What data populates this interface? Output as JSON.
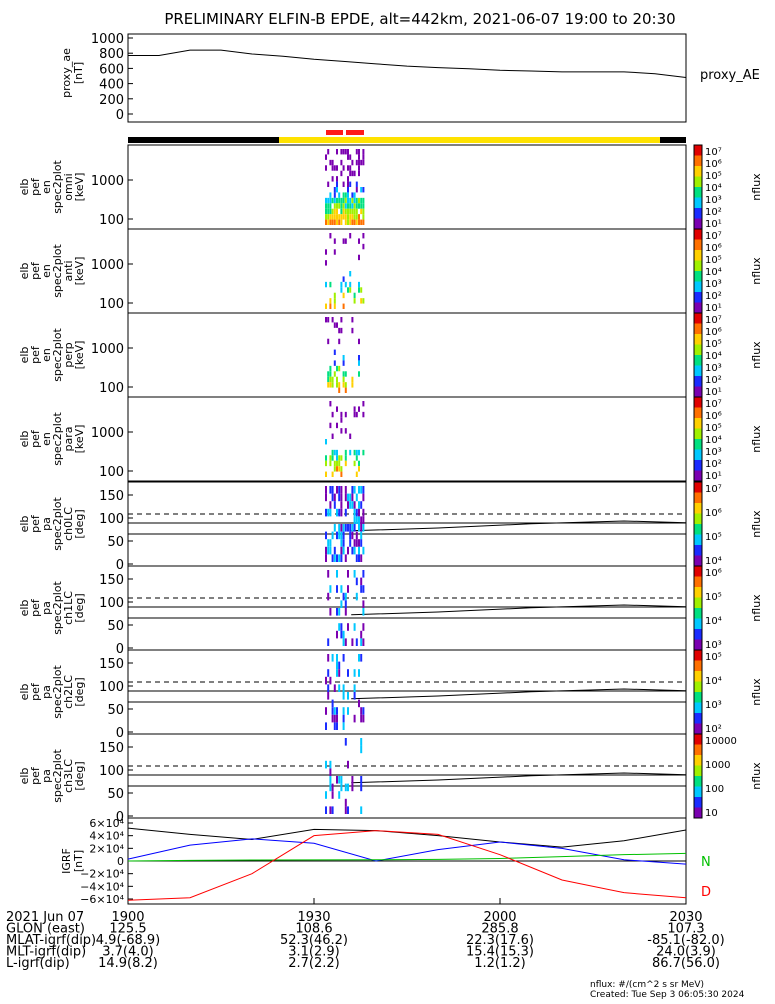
{
  "title": "PRELIMINARY ELFIN-B EPDE, alt=442km, 2021-06-07 19:00 to 20:30",
  "colors": {
    "ae_line": "#000000",
    "bar_black": "#000000",
    "bar_yellow": "#ffe200",
    "bar_red": "#ff1a1a",
    "grf_n": "#00c000",
    "grf_d": "#ff0000",
    "grf_e": "#0000ff",
    "grf_total": "#000000"
  },
  "panels": [
    {
      "ylabel": [
        "proxy_ae",
        "[nT]"
      ],
      "ticks": [
        "1000",
        "800",
        "600",
        "400",
        "200",
        "0"
      ],
      "right_label": "proxy_AE"
    },
    {
      "ylabel": [
        "elb",
        "pef",
        "en",
        "spec2plot",
        "omni",
        "[keV]"
      ],
      "ticks": [
        "1000",
        "100"
      ],
      "cbar_ticks": [
        "10⁷",
        "10⁶",
        "10⁵",
        "10⁴",
        "10³",
        "10²",
        "10¹"
      ],
      "cbar_label": "nflux"
    },
    {
      "ylabel": [
        "elb",
        "pef",
        "en",
        "spec2plot",
        "anti",
        "[keV]"
      ],
      "ticks": [
        "1000",
        "100"
      ],
      "cbar_ticks": [
        "10⁷",
        "10⁶",
        "10⁵",
        "10⁴",
        "10³",
        "10²",
        "10¹"
      ],
      "cbar_label": "nflux"
    },
    {
      "ylabel": [
        "elb",
        "pef",
        "en",
        "spec2plot",
        "perp",
        "[keV]"
      ],
      "ticks": [
        "1000",
        "100"
      ],
      "cbar_ticks": [
        "10⁷",
        "10⁶",
        "10⁵",
        "10⁴",
        "10³",
        "10²",
        "10¹"
      ],
      "cbar_label": "nflux"
    },
    {
      "ylabel": [
        "elb",
        "pef",
        "en",
        "spec2plot",
        "para",
        "[keV]"
      ],
      "ticks": [
        "1000",
        "100"
      ],
      "cbar_ticks": [
        "10⁷",
        "10⁶",
        "10⁵",
        "10⁴",
        "10³",
        "10²",
        "10¹"
      ],
      "cbar_label": "nflux"
    },
    {
      "ylabel": [
        "elb",
        "pef",
        "pa",
        "spec2plot",
        "ch0LC",
        "[deg]"
      ],
      "ticks": [
        "150",
        "100",
        "50",
        "0"
      ],
      "cbar_ticks": [
        "10⁷",
        "10⁶",
        "10⁵",
        "10⁴"
      ],
      "cbar_label": "nflux"
    },
    {
      "ylabel": [
        "elb",
        "pef",
        "pa",
        "spec2plot",
        "ch1LC",
        "[deg]"
      ],
      "ticks": [
        "150",
        "100",
        "50",
        "0"
      ],
      "cbar_ticks": [
        "10⁶",
        "10⁵",
        "10⁴",
        "10³"
      ],
      "cbar_label": "nflux"
    },
    {
      "ylabel": [
        "elb",
        "pef",
        "pa",
        "spec2plot",
        "ch2LC",
        "[deg]"
      ],
      "ticks": [
        "150",
        "100",
        "50",
        "0"
      ],
      "cbar_ticks": [
        "10⁵",
        "10⁴",
        "10³",
        "10²"
      ],
      "cbar_label": "nflux"
    },
    {
      "ylabel": [
        "elb",
        "pef",
        "pa",
        "spec2plot",
        "ch3LC",
        "[deg]"
      ],
      "ticks": [
        "150",
        "100",
        "50",
        "0"
      ],
      "cbar_ticks": [
        "10000",
        "1000",
        "100",
        "10"
      ],
      "cbar_label": "nflux"
    },
    {
      "ylabel": [
        "IGRF",
        "[nT]"
      ],
      "ticks": [
        "6×10⁴",
        "4×10⁴",
        "2×10⁴",
        "0",
        "−2×10⁴",
        "−4×10⁴",
        "−6×10⁴"
      ],
      "right_labels": [
        "N",
        "D"
      ]
    }
  ],
  "chart_data": {
    "type": "line",
    "x_ticks": [
      "1900",
      "1930",
      "2000",
      "2030"
    ],
    "proxy_ae": {
      "t": [
        0,
        5,
        10,
        15,
        20,
        25,
        30,
        35,
        40,
        45,
        50,
        55,
        60,
        65,
        70,
        75,
        80,
        85,
        90
      ],
      "values": [
        770,
        770,
        840,
        840,
        790,
        760,
        720,
        690,
        660,
        630,
        610,
        595,
        575,
        565,
        555,
        555,
        555,
        530,
        480
      ],
      "ylim": [
        0,
        1000
      ]
    },
    "igrf": {
      "t": [
        0,
        10,
        20,
        30,
        40,
        50,
        60,
        70,
        80,
        90
      ],
      "total": [
        52000,
        42000,
        34000,
        50000,
        48000,
        40000,
        30000,
        22000,
        32000,
        49000
      ],
      "e": [
        3000,
        25000,
        35000,
        28000,
        0,
        18000,
        30000,
        20000,
        2000,
        -5000
      ],
      "n": [
        0,
        1000,
        1500,
        1800,
        2000,
        2500,
        4000,
        7000,
        10000,
        12000
      ],
      "d": [
        -62000,
        -58000,
        -20000,
        40000,
        48000,
        42000,
        10000,
        -30000,
        -50000,
        -58000
      ],
      "ylim": [
        -60000,
        60000
      ]
    },
    "mlat_lc_line": {
      "t": [
        36,
        50,
        65,
        80,
        90
      ],
      "values": [
        72,
        80,
        92,
        100,
        95
      ]
    },
    "ephemeris": {
      "rows": [
        {
          "label": "2021 Jun 07",
          "values": [
            "1900",
            "1930",
            "2000",
            "2030"
          ]
        },
        {
          "label": "GLON (east)",
          "values": [
            "125.5",
            "108.6",
            "285.8",
            "107.3"
          ]
        },
        {
          "label": "MLAT-igrf(dip)",
          "values": [
            "4.9(-68.9)",
            "52.3(46.2)",
            "22.3(17.6)",
            "-85.1(-82.0)"
          ]
        },
        {
          "label": "MLT-igrf(dip)",
          "values": [
            "3.7(4.0)",
            "3.1(2.9)",
            "15.4(15.3)",
            "24.0(3.9)"
          ]
        },
        {
          "label": "L-igrf(dip)",
          "values": [
            "14.9(8.2)",
            "2.7(2.2)",
            "1.2(1.2)",
            "86.7(56.0)"
          ]
        }
      ]
    }
  },
  "footer": {
    "units": "nflux: #/(cm^2 s sr MeV)",
    "created": "Created: Tue Sep  3 06:05:30 2024"
  }
}
